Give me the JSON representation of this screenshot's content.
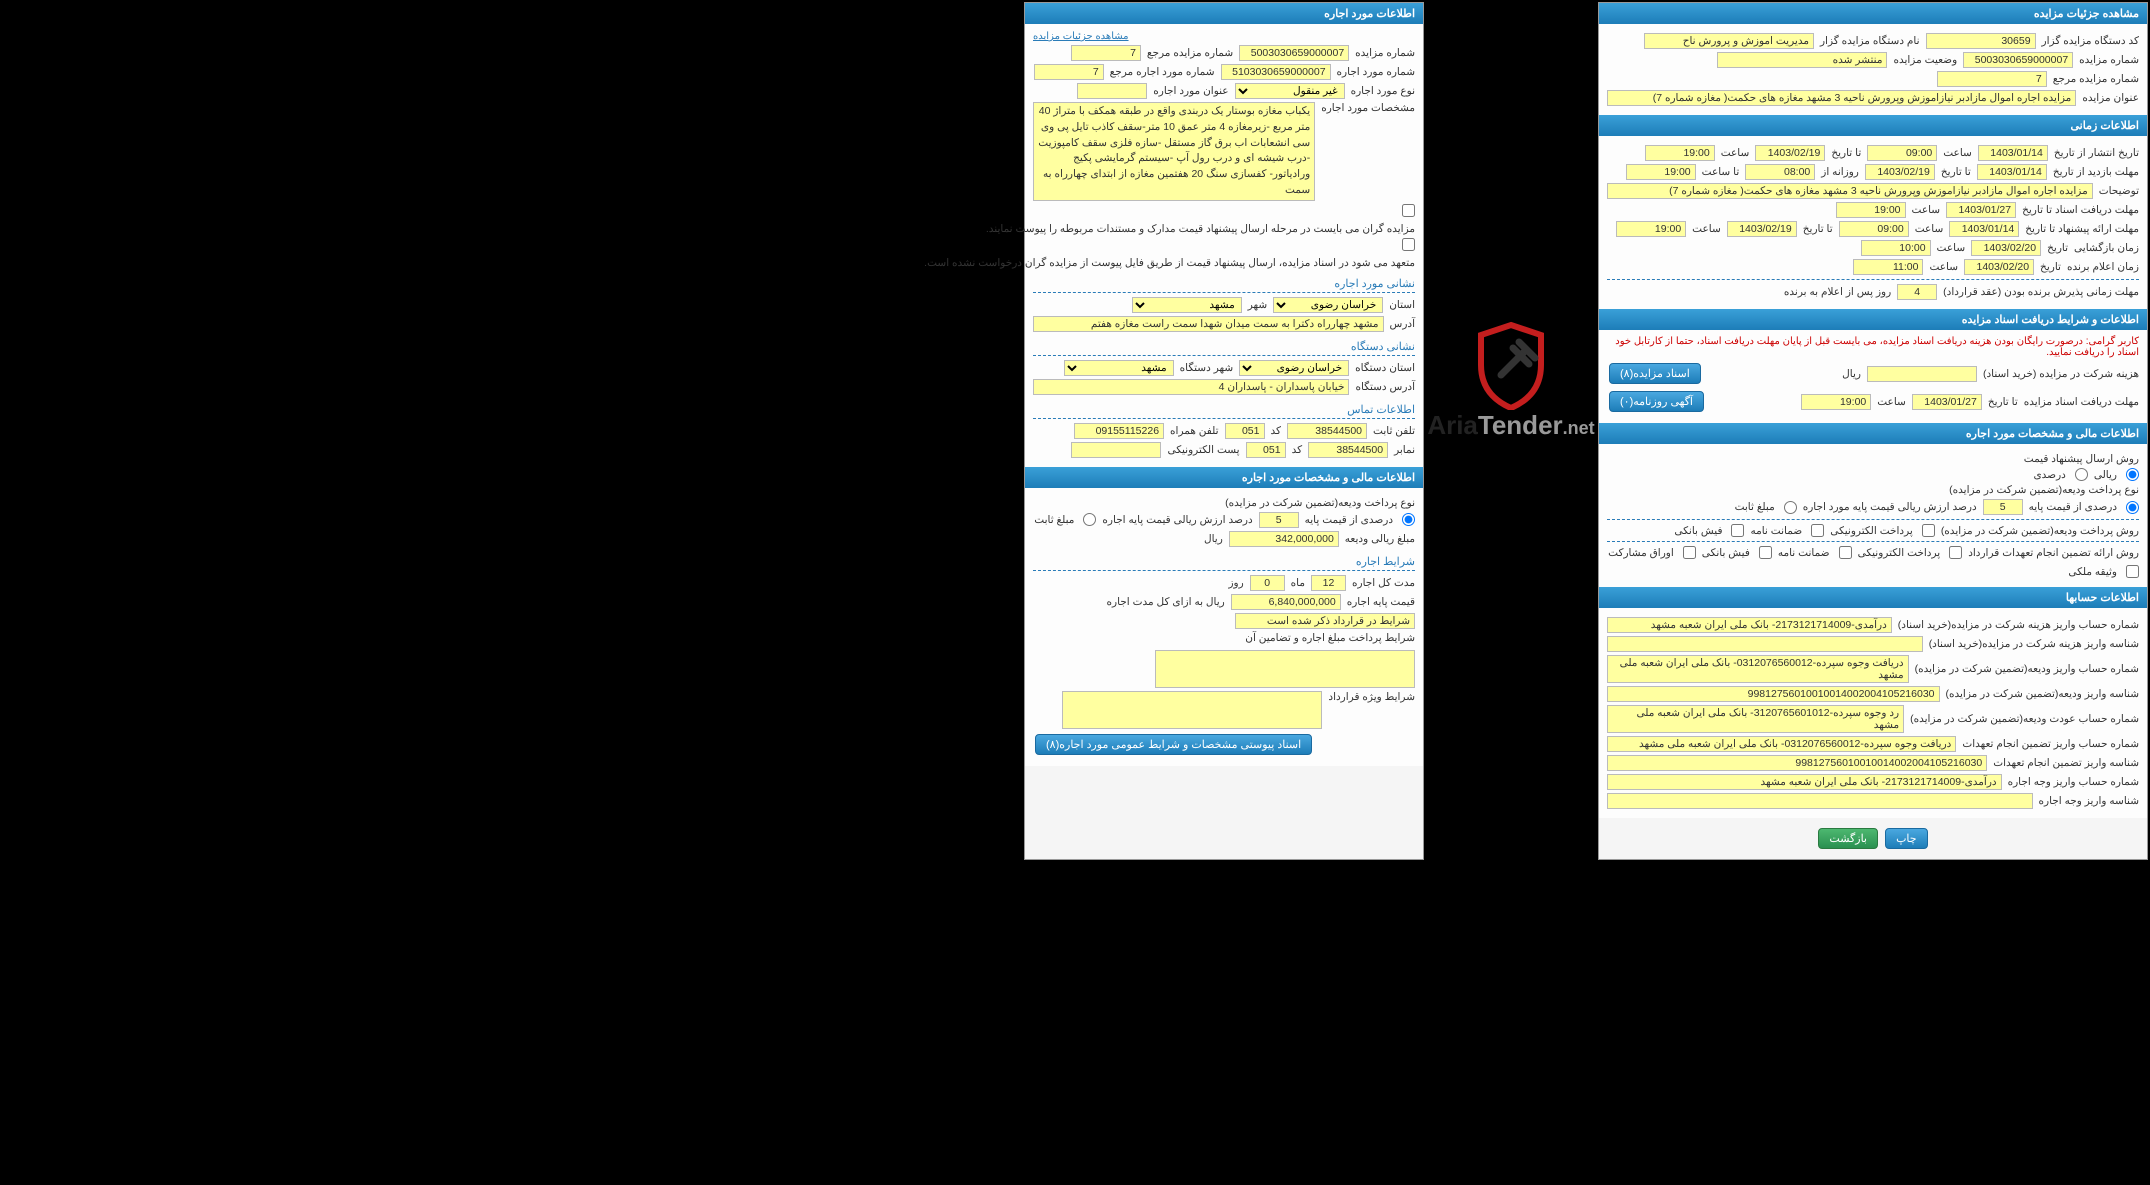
{
  "panel1": {
    "header": "مشاهده جزئیات مزایده",
    "r1": {
      "l1": "کد دستگاه مزایده گزار",
      "v1": "30659",
      "l2": "نام دستگاه مزایده گزار",
      "v2": "مدیریت اموزش و پرورش ناح"
    },
    "r2": {
      "l1": "شماره مزایده",
      "v1": "5003030659000007",
      "l2": "وضعیت مزایده",
      "v2": "منتشر شده"
    },
    "r3": {
      "l1": "شماره مزایده مرجع",
      "v1": "7"
    },
    "r4": {
      "l1": "عنوان مزایده",
      "v1": "مزایده اجاره  اموال مازادبر نیازاموزش  وپرورش ناحیه 3 مشهد مغازه های حکمت( مغازه شماره 7)"
    }
  },
  "panel2": {
    "header": "اطلاعات زمانی",
    "r1": {
      "l1": "تاریخ انتشار   از تاریخ",
      "v1": "1403/01/14",
      "l2": "ساعت",
      "v2": "09:00",
      "l3": "تا تاریخ",
      "v3": "1403/02/19",
      "l4": "ساعت",
      "v4": "19:00"
    },
    "r2": {
      "l1": "مهلت بازدید   از تاریخ",
      "v1": "1403/01/14",
      "l2": "تا تاریخ",
      "v2": "1403/02/19",
      "l3": "روزانه از",
      "v3": "08:00",
      "l4": "تا ساعت",
      "v4": "19:00"
    },
    "r3": {
      "l1": "توضیحات",
      "v1": "مزایده اجاره  اموال مازادبر نیازاموزش  وپرورش ناحیه 3 مشهد مغازه های حکمت( مغازه شماره 7)"
    },
    "r4": {
      "l1": "مهلت دریافت اسناد  تا تاریخ",
      "v1": "1403/01/27",
      "l2": "ساعت",
      "v2": "19:00"
    },
    "r5": {
      "l1": "مهلت ارائه پیشنهاد  تا تاریخ",
      "v1": "1403/01/14",
      "l2": "ساعت",
      "v2": "09:00",
      "l3": "تا تاریخ",
      "v3": "1403/02/19",
      "l4": "ساعت",
      "v4": "19:00"
    },
    "r6": {
      "l1": "زمان بازگشایی",
      "l2": "تاریخ",
      "v2": "1403/02/20",
      "l3": "ساعت",
      "v3": "10:00"
    },
    "r7": {
      "l1": "زمان اعلام برنده",
      "l2": "تاریخ",
      "v2": "1403/02/20",
      "l3": "ساعت",
      "v3": "11:00"
    },
    "r8": {
      "l1": "مهلت زمانی پذیرش برنده بودن (عقد قرارداد)",
      "v1": "4",
      "s1": "روز پس از اعلام به برنده"
    }
  },
  "panel3": {
    "header": "اطلاعات و شرایط دریافت اسناد مزایده",
    "warn": "کاربر گرامی: درصورت رایگان بودن هزینه دریافت اسناد مزایده، می بایست قبل از پایان مهلت دریافت اسناد، حتما از کارتابل خود اسناد را دریافت نمایید.",
    "r1": {
      "l1": "هزینه شرکت در مزایده (خرید اسناد)",
      "s1": "ریال",
      "btn": "اسناد مزایده(۸)"
    },
    "r2": {
      "l1": "مهلت دریافت اسناد مزایده",
      "l2": "تا تاریخ",
      "v2": "1403/01/27",
      "l3": "ساعت",
      "v3": "19:00",
      "btn": "آگهی روزنامه(۰)"
    }
  },
  "panel4": {
    "header": "اطلاعات مالی و مشخصات مورد اجاره",
    "r1": {
      "l1": "روش ارسال پیشنهاد قیمت"
    },
    "r2": {
      "o1": "ریالی",
      "o2": "درصدی"
    },
    "r3": {
      "l1": "نوع پرداخت ودیعه(تضمین شرکت در مزایده)"
    },
    "r4": {
      "l1": "درصدی از قیمت پایه",
      "v1": "5",
      "s1": "درصد ارزش ریالی قیمت پایه مورد اجاره",
      "o1": "مبلغ ثابت"
    },
    "r5": {
      "l1": "روش پرداخت ودیعه(تضمین شرکت در مزایده)",
      "o1": "پرداخت الکترونیکی",
      "o2": "ضمانت نامه",
      "o3": "فیش بانکی"
    },
    "r6": {
      "l1": "روش ارائه تضمین انجام تعهدات قرارداد",
      "o1": "پرداخت الکترونیکی",
      "o2": "ضمانت نامه",
      "o3": "فیش بانکی",
      "o4": "اوراق مشارکت",
      "o5": "وثیقه ملکی"
    }
  },
  "panel5": {
    "header": "اطلاعات حسابها",
    "r1": {
      "l": "شماره حساب واریز هزینه شرکت در مزایده(خرید اسناد)",
      "v": "درآمدی-2173121714009- بانک ملی ایران شعبه مشهد"
    },
    "r2": {
      "l": "شناسه واریز هزینه شرکت در مزایده(خرید اسناد)",
      "v": ""
    },
    "r3": {
      "l": "شماره حساب واریز ودیعه(تضمین شرکت در مزایده)",
      "v": "دریافت وجوه سپرده-0312076560012- بانک ملی ایران شعبه ملی مشهد"
    },
    "r4": {
      "l": "شناسه واریز ودیعه(تضمین شرکت در مزایده)",
      "v": "99812756010010014002004105216030"
    },
    "r5": {
      "l": "شماره حساب عودت ودیعه(تضمین شرکت در مزایده)",
      "v": "رد وجوه سپرده-3120765601012- بانک ملی ایران شعبه ملی مشهد"
    },
    "r6": {
      "l": "شماره حساب واریز تضمین انجام تعهدات",
      "v": "دریافت وجوه سپرده-0312076560012- بانک ملی ایران شعبه ملی مشهد"
    },
    "r7": {
      "l": "شناسه واریز تضمین انجام تعهدات",
      "v": "99812756010010014002004105216030"
    },
    "r8": {
      "l": "شماره حساب واریز وجه اجاره",
      "v": "درآمدی-2173121714009- بانک ملی ایران شعبه مشهد"
    },
    "r9": {
      "l": "شناسه واریز وجه اجاره",
      "v": ""
    }
  },
  "footer": {
    "b1": "چاپ",
    "b2": "بازگشت"
  },
  "left": {
    "header": "اطلاعات مورد اجاره",
    "link": "مشاهده جزئیات مزایده",
    "r1": {
      "l1": "شماره مزایده",
      "v1": "5003030659000007",
      "l2": "شماره مزایده مرجع",
      "v2": "7"
    },
    "r2": {
      "l1": "شماره مورد اجاره",
      "v1": "5103030659000007",
      "l2": "شماره مورد اجاره مرجع",
      "v2": "7"
    },
    "r3": {
      "l1": "نوع مورد اجاره",
      "v1": "غیر منقول",
      "l2": "عنوان مورد اجاره",
      "v2": ""
    },
    "r4": {
      "l1": "مشخصات مورد اجاره",
      "v1": "یکباب مغازه بوستار یک دربندی واقع در طبقه همکف با متراژ 40 متر مربع -زیرمغازه 4 متر عمق  10 متر-سقف کاذب تایل پی وی سی انشعابات اب برق گاز مستقل -سازه فلزی سقف کامپوزیت -درب شیشه ای  و درب رول آپ -سیستم گرمایشی پکیج ورادیاتور- کفسازی سنگ 20   هفتمین  مغازه  از ابتدای چهارراه به سمت"
    },
    "note1": "مزایده گران می بایست در مرحله ارسال پیشنهاد قیمت مدارک و مستندات مربوطه را پیوست نمایند.",
    "note2": "متعهد می شود در اسناد مزایده، ارسال پیشنهاد قیمت از طریق فایل پیوست از مزایده گران درخواست نشده است.",
    "d1": "نشانی مورد اجاره",
    "r5": {
      "l1": "استان",
      "v1": "خراسان رضوی",
      "l2": "شهر",
      "v2": "مشهد"
    },
    "r6": {
      "l1": "آدرس",
      "v1": "مشهد چهارراه دکترا به سمت میدان شهدا سمت راست مغازه  هفتم"
    },
    "d2": "نشانی دستگاه",
    "r7": {
      "l1": "استان دستگاه",
      "v1": "خراسان رضوی",
      "l2": "شهر دستگاه",
      "v2": "مشهد"
    },
    "r8": {
      "l1": "آدرس دستگاه",
      "v1": "خیابان پاسداران - پاسداران 4"
    },
    "d3": "اطلاعات تماس",
    "r9": {
      "l1": "تلفن ثابت",
      "v1": "38544500",
      "l2": "کد",
      "v2": "051",
      "l3": "تلفن همراه",
      "v3": "09155115226"
    },
    "r10": {
      "l1": "نمابر",
      "v1": "38544500",
      "l2": "کد",
      "v2": "051",
      "l3": "پست الکترونیکی",
      "v3": ""
    }
  },
  "left2": {
    "header": "اطلاعات مالی و مشخصات مورد اجاره",
    "r1": {
      "l1": "نوع پرداخت ودیعه(تضمین شرکت در مزایده)"
    },
    "r2": {
      "l1": "درصدی از قیمت پایه",
      "v1": "5",
      "s1": "درصد ارزش ریالی قیمت پایه اجاره",
      "o1": "مبلغ ثابت"
    },
    "r3": {
      "l1": "مبلغ ریالی ودیعه",
      "v1": "342,000,000",
      "s1": "ریال"
    },
    "d1": "شرایط اجاره",
    "r4": {
      "l1": "مدت کل اجاره",
      "v1": "12",
      "s1": "ماه",
      "v2": "0",
      "s2": "روز"
    },
    "r5": {
      "l1": "قیمت پایه اجاره",
      "v1": "6,840,000,000",
      "s1": "ریال به ازای کل مدت اجاره"
    },
    "r6": {
      "v1": "شرایط در قرارداد ذکر شده است"
    },
    "r7": {
      "l1": "شرایط پرداخت مبلغ اجاره و تضامین آن"
    },
    "r8": {
      "l1": "شرایط ویژه قرارداد"
    },
    "btn": "اسناد پیوستی مشخصات و شرایط عمومی مورد اجاره(۸)"
  },
  "logo": {
    "t1": "Aria",
    "t2": "Tender",
    "t3": ".net"
  }
}
